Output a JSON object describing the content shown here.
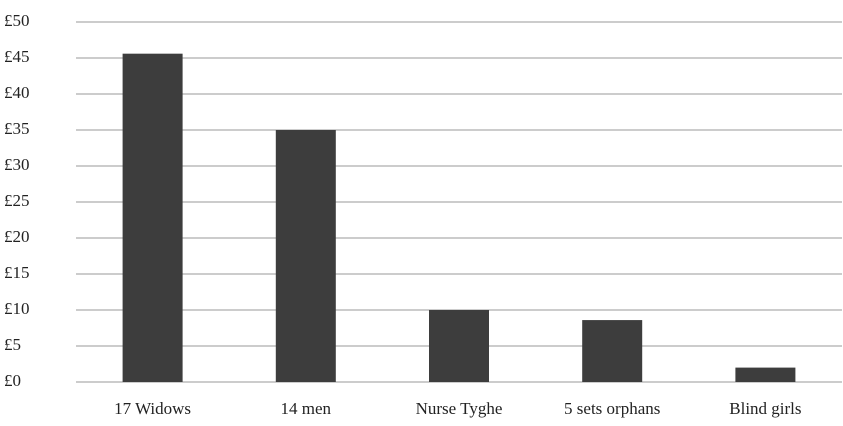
{
  "chart_data": {
    "type": "bar",
    "categories": [
      "17 Widows",
      "14 men",
      "Nurse Tyghe",
      "5 sets orphans",
      "Blind girls"
    ],
    "values": [
      45.6,
      35,
      10,
      8.6,
      2
    ],
    "color": "#3d3d3d",
    "ylim": [
      0,
      50
    ],
    "yticks": [
      {
        "value": 0,
        "label": "£0"
      },
      {
        "value": 5,
        "label": "£5"
      },
      {
        "value": 10,
        "label": "£10"
      },
      {
        "value": 15,
        "label": "£15"
      },
      {
        "value": 20,
        "label": "£20"
      },
      {
        "value": 25,
        "label": "£25"
      },
      {
        "value": 30,
        "label": "£30"
      },
      {
        "value": 35,
        "label": "£35"
      },
      {
        "value": 40,
        "label": "£40"
      },
      {
        "value": 45,
        "label": "£45"
      },
      {
        "value": 50,
        "label": "£50"
      }
    ],
    "grid": true
  }
}
